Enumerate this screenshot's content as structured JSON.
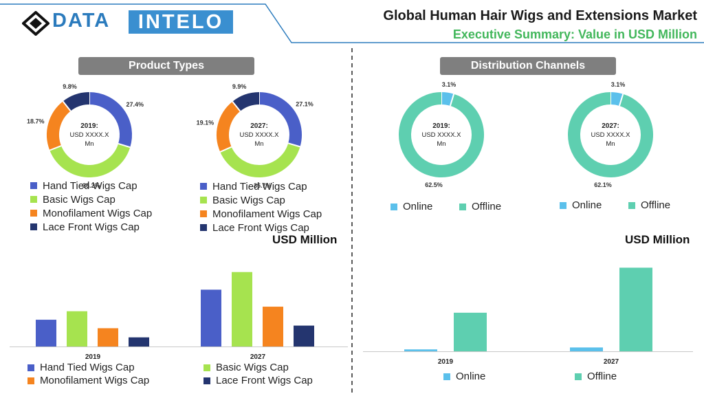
{
  "brand": {
    "part1": "DATA",
    "part2": "INTELO"
  },
  "header": {
    "title": "Global Human Hair Wigs and Extensions Market",
    "subtitle": "Executive Summary: Value in USD Million"
  },
  "sections": {
    "product": "Product Types",
    "distribution": "Distribution Channels"
  },
  "units": {
    "label": "USD Million"
  },
  "colors": {
    "hand_tied": "#4a5fc8",
    "basic": "#a6e34f",
    "monofilament": "#f5841f",
    "lace_front": "#24356f",
    "online": "#5bc0eb",
    "offline": "#5ecfb0",
    "header_line": "#2b7bbd",
    "subtitle": "#42b75b"
  },
  "product_legend": [
    "Hand Tied Wigs Cap",
    "Basic Wigs Cap",
    "Monofilament Wigs Cap",
    "Lace Front Wigs Cap"
  ],
  "channel_legend": [
    "Online",
    "Offline"
  ],
  "chart_data": [
    {
      "type": "pie",
      "id": "product-2019",
      "center_label": [
        "2019:",
        "USD XXXX.X",
        "Mn"
      ],
      "labels": [
        "Hand Tied Wigs Cap",
        "Basic Wigs Cap",
        "Monofilament Wigs Cap",
        "Lace Front Wigs Cap"
      ],
      "values": [
        27.4,
        36.2,
        18.7,
        9.8
      ],
      "value_labels": [
        "27.4%",
        "36.2%",
        "18.7%",
        "9.8%"
      ]
    },
    {
      "type": "pie",
      "id": "product-2027",
      "center_label": [
        "2027:",
        "USD XXXX.X",
        "Mn"
      ],
      "labels": [
        "Hand Tied Wigs Cap",
        "Basic Wigs Cap",
        "Monofilament Wigs Cap",
        "Lace Front Wigs Cap"
      ],
      "values": [
        27.1,
        35.7,
        19.1,
        9.9
      ],
      "value_labels": [
        "27.1%",
        "35.7%",
        "19.1%",
        "9.9%"
      ]
    },
    {
      "type": "pie",
      "id": "channel-2019",
      "center_label": [
        "2019:",
        "USD XXXX.X",
        "Mn"
      ],
      "labels": [
        "Online",
        "Offline"
      ],
      "values": [
        3.1,
        62.5
      ],
      "value_labels": [
        "3.1%",
        "62.5%"
      ]
    },
    {
      "type": "pie",
      "id": "channel-2027",
      "center_label": [
        "2027:",
        "USD XXXX.X",
        "Mn"
      ],
      "labels": [
        "Online",
        "Offline"
      ],
      "values": [
        3.1,
        62.1
      ],
      "value_labels": [
        "3.1%",
        "62.1%"
      ]
    },
    {
      "type": "bar",
      "id": "product-bars",
      "categories": [
        "2019",
        "2027"
      ],
      "series": [
        {
          "name": "Hand Tied Wigs Cap",
          "values": [
            41,
            87
          ]
        },
        {
          "name": "Basic Wigs Cap",
          "values": [
            54,
            114
          ]
        },
        {
          "name": "Monofilament Wigs Cap",
          "values": [
            28,
            61
          ]
        },
        {
          "name": "Lace Front Wigs Cap",
          "values": [
            14,
            32
          ]
        }
      ],
      "ylim": [
        0,
        120
      ],
      "grid": false,
      "legend": "bottom"
    },
    {
      "type": "bar",
      "id": "channel-bars",
      "categories": [
        "2019",
        "2027"
      ],
      "series": [
        {
          "name": "Online",
          "values": [
            3,
            6
          ]
        },
        {
          "name": "Offline",
          "values": [
            60,
            130
          ]
        }
      ],
      "ylim": [
        0,
        140
      ],
      "grid": false,
      "legend": "bottom"
    }
  ]
}
